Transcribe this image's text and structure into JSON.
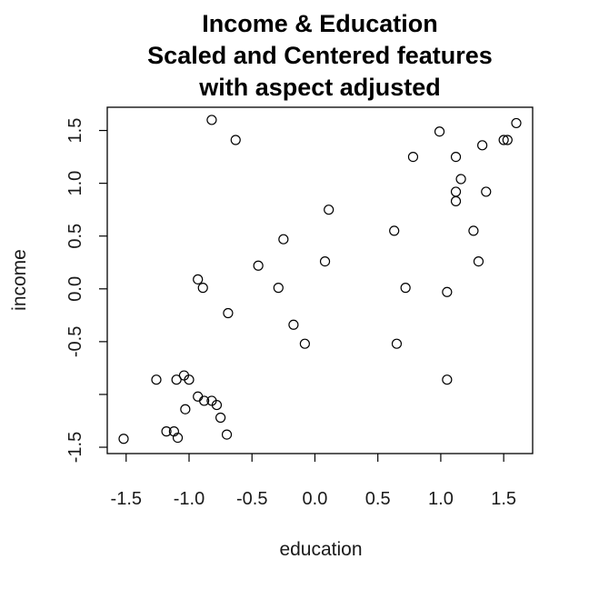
{
  "chart_data": {
    "type": "scatter",
    "title_lines": [
      "Income & Education",
      "Scaled and Centered features",
      "with aspect adjusted"
    ],
    "xlabel": "education",
    "ylabel": "income",
    "xlim": [
      -1.65,
      1.73
    ],
    "ylim": [
      -1.56,
      1.72
    ],
    "xticks": [
      -1.5,
      -1.0,
      -0.5,
      0.0,
      0.5,
      1.0,
      1.5
    ],
    "xtick_labels": [
      "-1.5",
      "-1.0",
      "-0.5",
      "0.0",
      "0.5",
      "1.0",
      "1.5"
    ],
    "yticks": [
      -1.5,
      -1.0,
      -0.5,
      0.0,
      0.5,
      1.0,
      1.5
    ],
    "ytick_labels": [
      "-1.5",
      "",
      "-0.5",
      "0.0",
      "0.5",
      "1.0",
      "1.5"
    ],
    "points": [
      {
        "x": -0.82,
        "y": 1.6
      },
      {
        "x": -0.63,
        "y": 1.41
      },
      {
        "x": 0.99,
        "y": 1.49
      },
      {
        "x": 1.6,
        "y": 1.57
      },
      {
        "x": 1.5,
        "y": 1.41
      },
      {
        "x": 1.53,
        "y": 1.41
      },
      {
        "x": 1.33,
        "y": 1.36
      },
      {
        "x": 0.78,
        "y": 1.25
      },
      {
        "x": 1.12,
        "y": 1.25
      },
      {
        "x": 1.16,
        "y": 1.04
      },
      {
        "x": 1.12,
        "y": 0.92
      },
      {
        "x": 1.36,
        "y": 0.92
      },
      {
        "x": 1.12,
        "y": 0.83
      },
      {
        "x": 0.11,
        "y": 0.75
      },
      {
        "x": 0.63,
        "y": 0.55
      },
      {
        "x": 1.26,
        "y": 0.55
      },
      {
        "x": -0.25,
        "y": 0.47
      },
      {
        "x": -0.45,
        "y": 0.22
      },
      {
        "x": 0.08,
        "y": 0.26
      },
      {
        "x": 1.3,
        "y": 0.26
      },
      {
        "x": -0.93,
        "y": 0.09
      },
      {
        "x": -0.89,
        "y": 0.01
      },
      {
        "x": -0.29,
        "y": 0.01
      },
      {
        "x": 0.72,
        "y": 0.01
      },
      {
        "x": 1.05,
        "y": -0.03
      },
      {
        "x": -0.69,
        "y": -0.23
      },
      {
        "x": -0.17,
        "y": -0.34
      },
      {
        "x": -0.08,
        "y": -0.52
      },
      {
        "x": 0.65,
        "y": -0.52
      },
      {
        "x": -1.26,
        "y": -0.86
      },
      {
        "x": -1.1,
        "y": -0.86
      },
      {
        "x": -1.04,
        "y": -0.82
      },
      {
        "x": -1.0,
        "y": -0.86
      },
      {
        "x": 1.05,
        "y": -0.86
      },
      {
        "x": -0.93,
        "y": -1.02
      },
      {
        "x": -0.88,
        "y": -1.06
      },
      {
        "x": -0.82,
        "y": -1.06
      },
      {
        "x": -0.78,
        "y": -1.1
      },
      {
        "x": -1.03,
        "y": -1.14
      },
      {
        "x": -0.75,
        "y": -1.22
      },
      {
        "x": -1.18,
        "y": -1.35
      },
      {
        "x": -1.12,
        "y": -1.35
      },
      {
        "x": -1.09,
        "y": -1.41
      },
      {
        "x": -0.7,
        "y": -1.38
      },
      {
        "x": -1.52,
        "y": -1.42
      }
    ]
  }
}
